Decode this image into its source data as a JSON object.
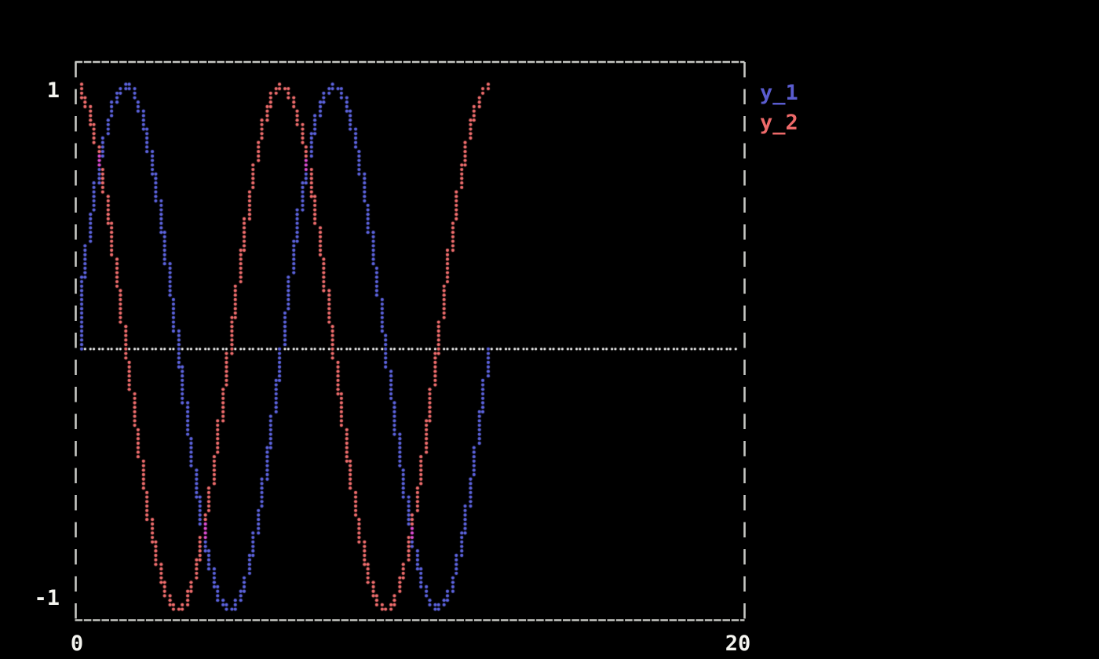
{
  "legend": {
    "entries": [
      {
        "label": "y_1",
        "color": "#5a5ccf"
      },
      {
        "label": "y_2",
        "color": "#ee6a6a"
      }
    ]
  },
  "chart_data": {
    "type": "line",
    "render_style": "terminal-braille-dots",
    "title": "",
    "xlabel": "",
    "ylabel": "",
    "xlim": [
      0,
      20
    ],
    "ylim": [
      -1,
      1
    ],
    "x_tick_labels": [
      "0",
      "20"
    ],
    "y_tick_labels": [
      "1",
      "-1"
    ],
    "grid": false,
    "legend_position": "outside-top-right",
    "background": "#000000",
    "border_color": "#c6c7c3",
    "tick_color": "#f5f5f0",
    "overlap_color": "#e14ed6",
    "reference_line": {
      "y": 0,
      "color": "#ffffff",
      "style": "dotted",
      "x_range": [
        0,
        20
      ]
    },
    "x": [
      0,
      0.2,
      0.4,
      0.6,
      0.8,
      1,
      1.2,
      1.4,
      1.6,
      1.8,
      2,
      2.2,
      2.4,
      2.6,
      2.8,
      3,
      3.2,
      3.4,
      3.6,
      3.8,
      4,
      4.2,
      4.4,
      4.6,
      4.8,
      5,
      5.2,
      5.4,
      5.6,
      5.8,
      6,
      6.2,
      6.4,
      6.6,
      6.8,
      7,
      7.2,
      7.4,
      7.6,
      7.8,
      8,
      8.2,
      8.4,
      8.6,
      8.8,
      9,
      9.2,
      9.4,
      9.6,
      9.8,
      10,
      10.2,
      10.4,
      10.6,
      10.8,
      11,
      11.2,
      11.4,
      11.6,
      11.8,
      12,
      12.2,
      12.4,
      12.566
    ],
    "series": [
      {
        "name": "y_1",
        "function": "sin(x)",
        "color": "#5d64e0",
        "values": [
          0.0,
          0.199,
          0.389,
          0.565,
          0.717,
          0.841,
          0.932,
          0.985,
          1.0,
          0.974,
          0.909,
          0.808,
          0.675,
          0.516,
          0.335,
          0.141,
          -0.058,
          -0.256,
          -0.443,
          -0.612,
          -0.757,
          -0.872,
          -0.952,
          -0.994,
          -0.996,
          -0.959,
          -0.883,
          -0.773,
          -0.631,
          -0.465,
          -0.279,
          -0.083,
          0.117,
          0.312,
          0.494,
          0.657,
          0.794,
          0.899,
          0.968,
          0.999,
          0.989,
          0.94,
          0.855,
          0.735,
          0.585,
          0.412,
          0.223,
          0.025,
          -0.174,
          -0.366,
          -0.544,
          -0.7,
          -0.828,
          -0.923,
          -0.982,
          -1.0,
          -0.979,
          -0.919,
          -0.823,
          -0.694,
          -0.537,
          -0.354,
          -0.158,
          0.0
        ]
      },
      {
        "name": "y_2",
        "function": "cos(x)",
        "color": "#f26e6e",
        "values": [
          1.0,
          0.98,
          0.921,
          0.825,
          0.697,
          0.54,
          0.362,
          0.17,
          -0.029,
          -0.227,
          -0.416,
          -0.589,
          -0.737,
          -0.857,
          -0.942,
          -0.99,
          -0.998,
          -0.967,
          -0.896,
          -0.791,
          -0.654,
          -0.49,
          -0.307,
          -0.112,
          0.087,
          0.284,
          0.469,
          0.635,
          0.776,
          0.886,
          0.96,
          0.997,
          0.993,
          0.95,
          0.869,
          0.754,
          0.608,
          0.439,
          0.252,
          0.054,
          -0.146,
          -0.34,
          -0.519,
          -0.679,
          -0.811,
          -0.911,
          -0.975,
          -1.0,
          -0.985,
          -0.93,
          -0.839,
          -0.714,
          -0.561,
          -0.385,
          -0.194,
          0.004,
          0.202,
          0.391,
          0.567,
          0.719,
          0.844,
          0.934,
          0.986,
          1.0
        ]
      }
    ]
  }
}
